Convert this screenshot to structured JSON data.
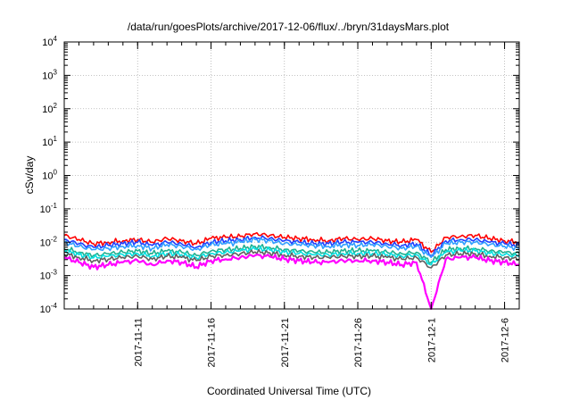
{
  "chart_data": {
    "type": "line",
    "title": "/data/run/goesPlots/archive/2017-12-06/flux/../bryn/31daysMars.plot",
    "xlabel": "Coordinated Universal Time (UTC)",
    "ylabel": "cSv/day",
    "y_scale": "log",
    "ylim": [
      0.0001,
      10000
    ],
    "xlim": [
      "2017-11-06",
      "2017-12-07"
    ],
    "grid": true,
    "x_ticks": [
      "2017-11-11",
      "2017-11-16",
      "2017-11-21",
      "2017-11-26",
      "2017-12-1",
      "2017-12-6"
    ],
    "x_tick_dates": [
      "2017-11-11",
      "2017-11-16",
      "2017-11-21",
      "2017-11-26",
      "2017-12-01",
      "2017-12-06"
    ],
    "y_ticks": [
      {
        "base": "10",
        "exp": "-4",
        "value": 0.0001
      },
      {
        "base": "10",
        "exp": "-3",
        "value": 0.001
      },
      {
        "base": "10",
        "exp": "-2",
        "value": 0.01
      },
      {
        "base": "10",
        "exp": "-1",
        "value": 0.1
      },
      {
        "base": "10",
        "exp": "0",
        "value": 1
      },
      {
        "base": "10",
        "exp": "1",
        "value": 10
      },
      {
        "base": "10",
        "exp": "2",
        "value": 100
      },
      {
        "base": "10",
        "exp": "3",
        "value": 1000
      },
      {
        "base": "10",
        "exp": "4",
        "value": 10000
      }
    ],
    "x": [
      "2017-11-06",
      "2017-11-07",
      "2017-11-08",
      "2017-11-09",
      "2017-11-10",
      "2017-11-11",
      "2017-11-12",
      "2017-11-13",
      "2017-11-14",
      "2017-11-15",
      "2017-11-16",
      "2017-11-17",
      "2017-11-18",
      "2017-11-19",
      "2017-11-20",
      "2017-11-21",
      "2017-11-22",
      "2017-11-23",
      "2017-11-24",
      "2017-11-25",
      "2017-11-26",
      "2017-11-27",
      "2017-11-28",
      "2017-11-29",
      "2017-11-30",
      "2017-12-01",
      "2017-12-02",
      "2017-12-03",
      "2017-12-04",
      "2017-12-05",
      "2017-12-06",
      "2017-12-07"
    ],
    "series": [
      {
        "color": "#ff0000",
        "values": [
          0.016,
          0.012,
          0.009,
          0.01,
          0.011,
          0.012,
          0.01,
          0.013,
          0.011,
          0.009,
          0.013,
          0.014,
          0.015,
          0.018,
          0.016,
          0.014,
          0.013,
          0.012,
          0.011,
          0.013,
          0.012,
          0.013,
          0.011,
          0.01,
          0.012,
          0.005,
          0.014,
          0.015,
          0.016,
          0.013,
          0.011,
          0.01
        ]
      },
      {
        "color": "#1f3fff",
        "values": [
          0.012,
          0.009,
          0.007,
          0.008,
          0.009,
          0.01,
          0.008,
          0.01,
          0.009,
          0.007,
          0.01,
          0.011,
          0.012,
          0.014,
          0.013,
          0.011,
          0.01,
          0.009,
          0.009,
          0.01,
          0.01,
          0.01,
          0.009,
          0.008,
          0.009,
          0.004,
          0.011,
          0.012,
          0.012,
          0.01,
          0.009,
          0.008
        ]
      },
      {
        "color": "#2f9fff",
        "values": [
          0.01,
          0.0075,
          0.006,
          0.0065,
          0.0075,
          0.008,
          0.0065,
          0.0085,
          0.0075,
          0.006,
          0.0085,
          0.009,
          0.01,
          0.012,
          0.011,
          0.009,
          0.0085,
          0.008,
          0.0075,
          0.0085,
          0.008,
          0.0085,
          0.0075,
          0.0065,
          0.0075,
          0.0035,
          0.009,
          0.01,
          0.01,
          0.0085,
          0.0075,
          0.0065
        ]
      },
      {
        "color": "#20b090",
        "values": [
          0.0065,
          0.005,
          0.004,
          0.0045,
          0.005,
          0.0055,
          0.0045,
          0.0055,
          0.005,
          0.004,
          0.0055,
          0.006,
          0.0065,
          0.0075,
          0.007,
          0.006,
          0.0055,
          0.005,
          0.005,
          0.0055,
          0.0055,
          0.0055,
          0.005,
          0.0045,
          0.005,
          0.0025,
          0.006,
          0.0065,
          0.0065,
          0.0055,
          0.005,
          0.0045
        ]
      },
      {
        "color": "#00e0e0",
        "values": [
          0.0055,
          0.0042,
          0.0034,
          0.0038,
          0.0042,
          0.0046,
          0.0038,
          0.0046,
          0.0042,
          0.0034,
          0.0046,
          0.005,
          0.0055,
          0.0062,
          0.0058,
          0.005,
          0.0046,
          0.0042,
          0.0042,
          0.0046,
          0.0046,
          0.0046,
          0.0042,
          0.0038,
          0.0042,
          0.0021,
          0.005,
          0.0055,
          0.0055,
          0.0046,
          0.0042,
          0.0038
        ]
      },
      {
        "color": "#606060",
        "values": [
          0.0045,
          0.0035,
          0.0028,
          0.0031,
          0.0035,
          0.0038,
          0.0031,
          0.0038,
          0.0035,
          0.0028,
          0.0038,
          0.0041,
          0.0045,
          0.0051,
          0.0048,
          0.0041,
          0.0038,
          0.0035,
          0.0035,
          0.0038,
          0.0038,
          0.0038,
          0.0035,
          0.0031,
          0.0035,
          0.0017,
          0.0041,
          0.0045,
          0.0045,
          0.0038,
          0.0035,
          0.0031
        ]
      },
      {
        "color": "#ff00ff",
        "values": [
          0.0035,
          0.0025,
          0.0018,
          0.0021,
          0.0025,
          0.0028,
          0.0021,
          0.0028,
          0.0025,
          0.0018,
          0.0028,
          0.0031,
          0.0035,
          0.004,
          0.0037,
          0.0031,
          0.0028,
          0.0025,
          0.0025,
          0.0028,
          0.0028,
          0.0028,
          0.0025,
          0.0021,
          0.0025,
          0.0001,
          0.0031,
          0.0035,
          0.0035,
          0.0028,
          0.0025,
          0.0021
        ]
      }
    ]
  }
}
